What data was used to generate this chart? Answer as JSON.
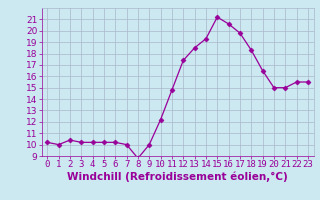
{
  "x": [
    0,
    1,
    2,
    3,
    4,
    5,
    6,
    7,
    8,
    9,
    10,
    11,
    12,
    13,
    14,
    15,
    16,
    17,
    18,
    19,
    20,
    21,
    22,
    23
  ],
  "y": [
    10.2,
    10.0,
    10.4,
    10.2,
    10.2,
    10.2,
    10.2,
    10.0,
    8.8,
    10.0,
    12.2,
    14.8,
    17.4,
    18.5,
    19.3,
    21.2,
    20.6,
    19.8,
    18.3,
    16.5,
    15.0,
    15.0,
    15.5,
    15.5
  ],
  "line_color": "#990099",
  "marker": "D",
  "marker_size": 2.5,
  "bg_color": "#cce8f0",
  "grid_color": "#aab8cc",
  "xlabel": "Windchill (Refroidissement éolien,°C)",
  "ylim": [
    9,
    22
  ],
  "xlim": [
    -0.5,
    23.5
  ],
  "yticks": [
    9,
    10,
    11,
    12,
    13,
    14,
    15,
    16,
    17,
    18,
    19,
    20,
    21
  ],
  "xticks": [
    0,
    1,
    2,
    3,
    4,
    5,
    6,
    7,
    8,
    9,
    10,
    11,
    12,
    13,
    14,
    15,
    16,
    17,
    18,
    19,
    20,
    21,
    22,
    23
  ],
  "tick_color": "#990099",
  "label_color": "#990099",
  "xlabel_fontsize": 7.5,
  "tick_fontsize": 6.5,
  "ylabel_fontsize": 6.5
}
